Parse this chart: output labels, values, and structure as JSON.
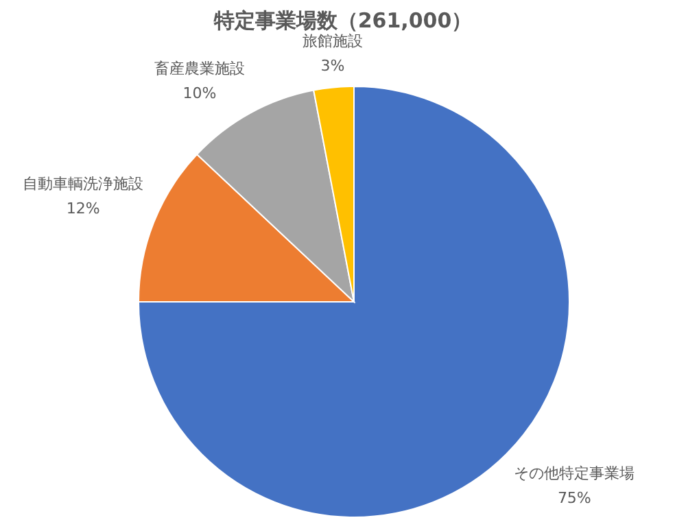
{
  "chart_data": {
    "type": "pie",
    "title": "特定事業場数（261,000）",
    "categories": [
      "その他特定事業場",
      "自動車輌洗浄施設",
      "畜産農業施設",
      "旅館施設"
    ],
    "values": [
      75,
      12,
      10,
      3
    ],
    "colors": [
      "#4472c4",
      "#ed7d31",
      "#a5a5a5",
      "#ffc000"
    ],
    "value_labels": [
      "75%",
      "12%",
      "10%",
      "3%"
    ],
    "legend": false
  }
}
